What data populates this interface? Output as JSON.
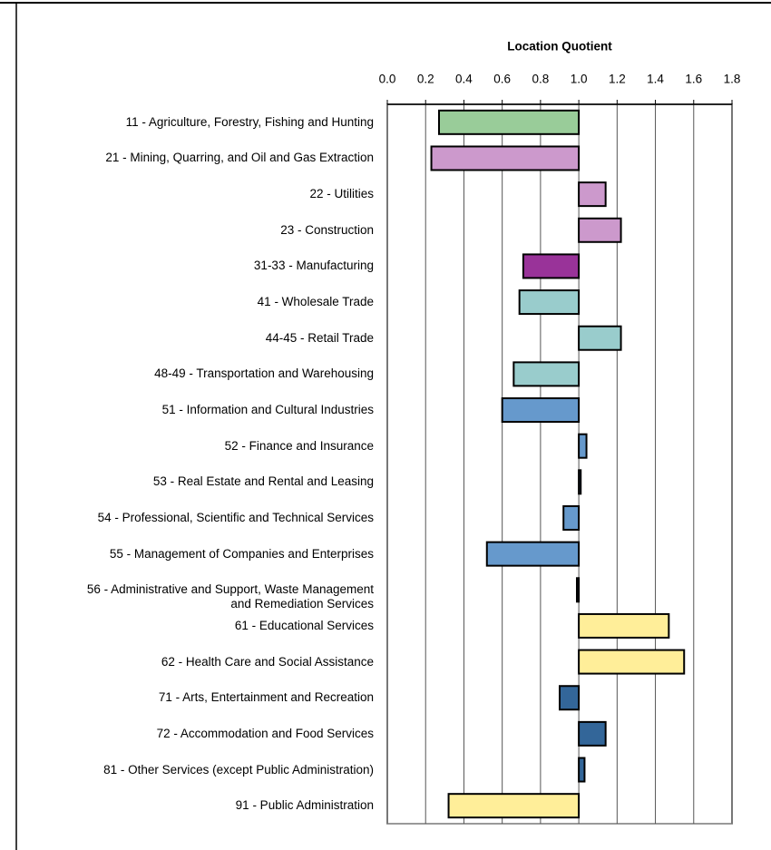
{
  "chart_data": {
    "type": "hbar",
    "x_label": "Location Quotient",
    "categories": [
      "11 - Agriculture, Forestry, Fishing and Hunting",
      "21 - Mining, Quarring, and Oil and Gas Extraction",
      "22 - Utilities",
      "23 - Construction",
      "31-33 - Manufacturing",
      "41 - Wholesale Trade",
      "44-45 - Retail Trade",
      "48-49 - Transportation and Warehousing",
      "51 - Information and Cultural Industries",
      "52 - Finance and Insurance",
      "53 - Real Estate and Rental and Leasing",
      "54 - Professional, Scientific and Technical Services",
      "55 - Management of Companies and Enterprises",
      "56 - Administrative and Support, Waste Management\nand Remediation Services",
      "61 - Educational Services",
      "62 - Health Care and Social Assistance",
      "71 - Arts, Entertainment and Recreation",
      "72 - Accommodation and Food Services",
      "81 - Other Services (except Public Administration)",
      "91 - Public Administration"
    ],
    "values": [
      0.27,
      0.23,
      1.14,
      1.22,
      0.71,
      0.69,
      1.22,
      0.66,
      0.6,
      1.04,
      1.01,
      0.92,
      0.52,
      0.99,
      1.47,
      1.55,
      0.9,
      1.14,
      1.03,
      0.32
    ],
    "colors": [
      "#99cc99",
      "#cc99cc",
      "#cc99cc",
      "#cc99cc",
      "#993399",
      "#99cccc",
      "#99cccc",
      "#99cccc",
      "#6699cc",
      "#6699cc",
      "#6699cc",
      "#6699cc",
      "#6699cc",
      "#336699",
      "#ffee99",
      "#ffee99",
      "#336699",
      "#336699",
      "#336699",
      "#ffee99"
    ],
    "bar_base": 1.0,
    "xlim": [
      0,
      1.8
    ],
    "xticks": [
      {
        "value": 0,
        "label": "0.0"
      },
      0.2,
      0.4,
      0.6,
      0.8,
      {
        "value": 1,
        "label": "1.0"
      },
      1.2,
      1.4,
      1.6,
      1.8
    ],
    "grid": true
  }
}
